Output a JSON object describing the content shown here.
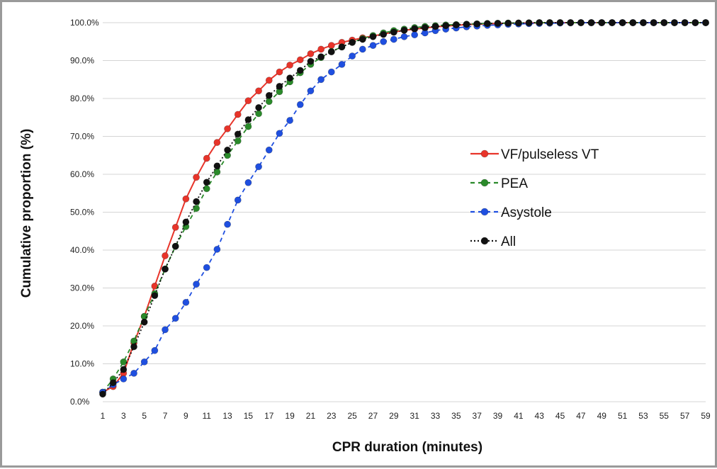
{
  "chart_data": {
    "type": "line",
    "xlabel": "CPR duration (minutes)",
    "ylabel": "Cumulative proportion (%)",
    "x": [
      1,
      2,
      3,
      4,
      5,
      6,
      7,
      8,
      9,
      10,
      11,
      12,
      13,
      14,
      15,
      16,
      17,
      18,
      19,
      20,
      21,
      22,
      23,
      24,
      25,
      26,
      27,
      28,
      29,
      30,
      31,
      32,
      33,
      34,
      35,
      36,
      37,
      38,
      39,
      40,
      41,
      42,
      43,
      44,
      45,
      46,
      47,
      48,
      49,
      50,
      51,
      52,
      53,
      54,
      55,
      56,
      57,
      58,
      59
    ],
    "xticks": [
      "1",
      "3",
      "5",
      "7",
      "9",
      "11",
      "13",
      "15",
      "17",
      "19",
      "21",
      "23",
      "25",
      "27",
      "29",
      "31",
      "33",
      "35",
      "37",
      "39",
      "41",
      "43",
      "45",
      "47",
      "49",
      "51",
      "53",
      "55",
      "57",
      "59"
    ],
    "xlim": [
      1,
      59
    ],
    "ylim": [
      0,
      100
    ],
    "yticks": [
      "0.0%",
      "10.0%",
      "20.0%",
      "30.0%",
      "40.0%",
      "50.0%",
      "60.0%",
      "70.0%",
      "80.0%",
      "90.0%",
      "100.0%"
    ],
    "grid": "horizontal",
    "legend_position": "right-middle",
    "series": [
      {
        "name": "VF/pulseless VT",
        "color": "#e8342a",
        "line_style": "solid",
        "values": [
          2.5,
          4,
          7.5,
          15.5,
          22.5,
          30.5,
          38.5,
          46,
          53.5,
          59.2,
          64.2,
          68.4,
          72,
          75.8,
          79.4,
          82,
          84.8,
          87,
          88.8,
          90.2,
          91.8,
          93,
          94,
          94.8,
          95.4,
          96,
          96.5,
          97,
          97.5,
          98,
          98.3,
          98.6,
          98.9,
          99.1,
          99.3,
          99.5,
          99.6,
          99.7,
          99.8,
          99.85,
          99.9,
          99.9,
          99.95,
          100,
          100,
          100,
          100,
          100,
          100,
          100,
          100,
          100,
          100,
          100,
          100,
          100,
          100,
          100,
          100
        ]
      },
      {
        "name": "PEA",
        "color": "#2a8a2a",
        "line_style": "dashed",
        "values": [
          2.5,
          6,
          10.5,
          16,
          22.5,
          28.5,
          35,
          41,
          46.2,
          51,
          56.2,
          60.6,
          65,
          68.8,
          72.6,
          76,
          79.2,
          81.8,
          84.4,
          86.8,
          89,
          90.8,
          92.4,
          93.6,
          94.8,
          95.8,
          96.6,
          97.3,
          97.9,
          98.3,
          98.7,
          99,
          99.2,
          99.4,
          99.5,
          99.6,
          99.7,
          99.8,
          99.85,
          99.9,
          99.9,
          99.95,
          100,
          100,
          100,
          100,
          100,
          100,
          100,
          100,
          100,
          100,
          100,
          100,
          100,
          100,
          100,
          100,
          100
        ]
      },
      {
        "name": "Asystole",
        "color": "#1f4fe0",
        "line_style": "dashed",
        "values": [
          2.5,
          4.5,
          6,
          7.5,
          10.5,
          13.5,
          19,
          22,
          26.2,
          31,
          35.4,
          40.2,
          46.8,
          53.2,
          57.8,
          62,
          66.4,
          70.8,
          74.2,
          78.4,
          82,
          85,
          87,
          89,
          91.2,
          93,
          94,
          95,
          95.6,
          96.3,
          96.8,
          97.3,
          97.9,
          98.3,
          98.6,
          98.9,
          99.1,
          99.3,
          99.4,
          99.55,
          99.65,
          99.75,
          99.8,
          99.85,
          99.9,
          99.95,
          100,
          100,
          100,
          100,
          100,
          100,
          100,
          100,
          100,
          100,
          100,
          100,
          100
        ]
      },
      {
        "name": "All",
        "color": "#111111",
        "line_style": "dotted",
        "values": [
          2,
          5,
          8.5,
          14.5,
          21,
          28,
          35,
          41,
          47.4,
          52.8,
          57.9,
          62.2,
          66.4,
          70.6,
          74.4,
          77.6,
          80.8,
          83.2,
          85.4,
          87.4,
          89.8,
          91,
          92.3,
          93.6,
          94.8,
          95.6,
          96.3,
          96.9,
          97.5,
          98,
          98.4,
          98.7,
          99,
          99.2,
          99.4,
          99.55,
          99.65,
          99.75,
          99.8,
          99.85,
          99.9,
          99.95,
          100,
          100,
          100,
          100,
          100,
          100,
          100,
          100,
          100,
          100,
          100,
          100,
          100,
          100,
          100,
          100,
          100
        ]
      }
    ]
  }
}
